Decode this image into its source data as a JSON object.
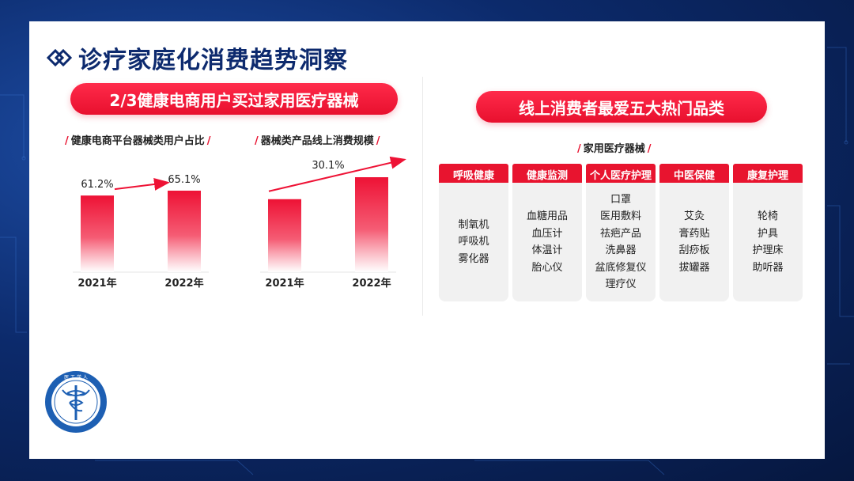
{
  "title": "诊疗家庭化消费趋势洞察",
  "left_banner": "2/3健康电商用户买过家用医疗器械",
  "right_banner": "线上消费者最爱五大热门品类",
  "chart_data": [
    {
      "type": "bar",
      "title": "健康电商平台器械类用户占比",
      "categories": [
        "2021年",
        "2022年"
      ],
      "values": [
        61.2,
        65.1
      ],
      "value_labels": [
        "61.2%",
        "65.1%"
      ],
      "color": "#ee1235",
      "arrow": true
    },
    {
      "type": "bar",
      "title": "器械类产品线上消费规模",
      "categories": [
        "2021年",
        "2022年"
      ],
      "values": [
        1,
        1.301
      ],
      "growth_label": "30.1%",
      "color": "#ee1235",
      "arrow": true
    }
  ],
  "categories_label": "家用医疗器械",
  "categories": [
    {
      "name": "呼吸健康",
      "items": [
        "制氧机",
        "呼吸机",
        "雾化器"
      ]
    },
    {
      "name": "健康监测",
      "items": [
        "血糖用品",
        "血压计",
        "体温计",
        "胎心仪"
      ]
    },
    {
      "name": "个人医疗护理",
      "items": [
        "口罩",
        "医用敷料",
        "祛疤产品",
        "洗鼻器",
        "盆底修复仪",
        "理疗仪"
      ]
    },
    {
      "name": "中医保健",
      "items": [
        "艾灸",
        "膏药贴",
        "刮痧板",
        "拔罐器"
      ]
    },
    {
      "name": "康复护理",
      "items": [
        "轮椅",
        "护具",
        "护理床",
        "助听器"
      ]
    }
  ],
  "logo_text": "医 工 学 人"
}
